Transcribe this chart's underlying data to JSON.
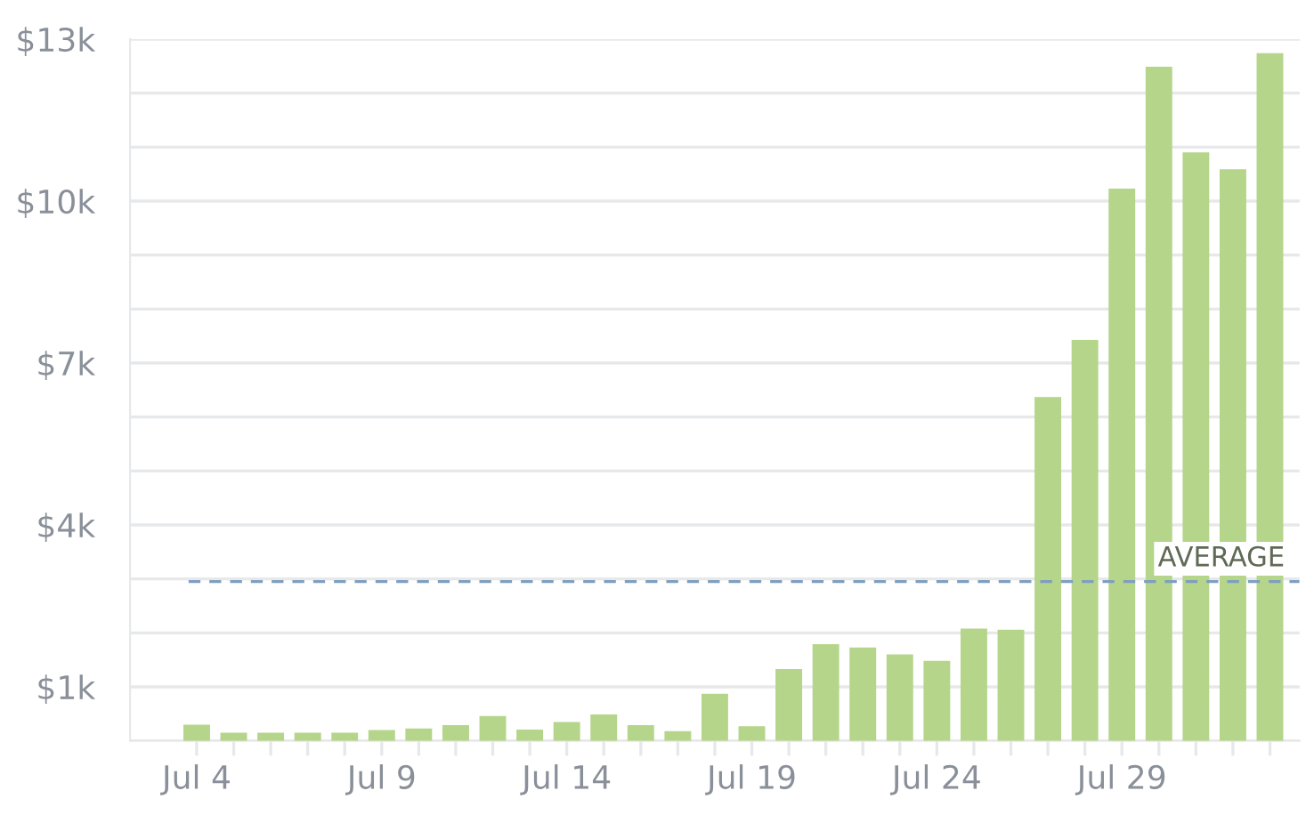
{
  "chart_data": {
    "type": "bar",
    "categories": [
      "Jul 4",
      null,
      null,
      null,
      null,
      "Jul 9",
      null,
      null,
      null,
      null,
      "Jul 14",
      null,
      null,
      null,
      null,
      "Jul 19",
      null,
      null,
      null,
      null,
      "Jul 24",
      null,
      null,
      null,
      null,
      "Jul 29",
      null,
      null,
      null,
      null
    ],
    "values": [
      0.3,
      0.15,
      0.15,
      0.15,
      0.15,
      0.2,
      0.23,
      0.29,
      0.46,
      0.21,
      0.35,
      0.49,
      0.29,
      0.18,
      0.87,
      0.27,
      1.33,
      1.79,
      1.73,
      1.6,
      1.48,
      2.08,
      2.06,
      6.37,
      7.43,
      10.23,
      12.49,
      10.9,
      10.59,
      12.74
    ],
    "color": "#b5d58a",
    "ylim": [
      0,
      13
    ],
    "yticks": [
      {
        "value": 0,
        "label": null
      },
      {
        "value": 1,
        "label": "$1k"
      },
      {
        "value": 2,
        "label": null
      },
      {
        "value": 3,
        "label": null
      },
      {
        "value": 4,
        "label": "$4k"
      },
      {
        "value": 5,
        "label": null
      },
      {
        "value": 6,
        "label": null
      },
      {
        "value": 7,
        "label": "$7k"
      },
      {
        "value": 8,
        "label": null
      },
      {
        "value": 9,
        "label": null
      },
      {
        "value": 10,
        "label": "$10k"
      },
      {
        "value": 11,
        "label": null
      },
      {
        "value": 12,
        "label": null
      },
      {
        "value": 13,
        "label": "$13k"
      }
    ],
    "grid": "y",
    "ref_lines": [
      {
        "axis": "y",
        "value": 2.95,
        "label": "AVERAGE",
        "color": "#7f9fbf",
        "line_style": "dashed"
      }
    ]
  }
}
